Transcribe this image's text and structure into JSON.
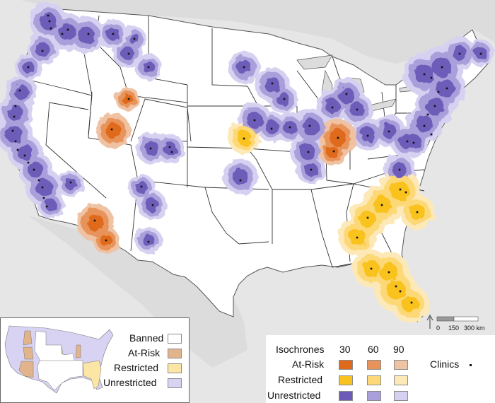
{
  "colors": {
    "banned": "#ffffff",
    "at_risk": "#e2b48c",
    "restricted": "#fce6a6",
    "unrestricted": "#d9d3f3",
    "iso": {
      "at_risk": [
        "#e06a1b",
        "#e8935a",
        "#efc2a3"
      ],
      "restricted": [
        "#f9c21e",
        "#fcd877",
        "#fde9b8"
      ],
      "unrestricted": [
        "#6d5bb8",
        "#a99fda",
        "#d7d1f1"
      ]
    },
    "clinic": "#111111"
  },
  "status_legend": {
    "items": [
      {
        "label": "Banned",
        "swatch": "banned"
      },
      {
        "label": "At-Risk",
        "swatch": "at_risk"
      },
      {
        "label": "Restricted",
        "swatch": "restricted"
      },
      {
        "label": "Unrestricted",
        "swatch": "unrestricted"
      }
    ]
  },
  "isochrone_legend": {
    "title": "Isochrones",
    "columns": [
      "30",
      "60",
      "90"
    ],
    "rows": [
      {
        "label": "At-Risk",
        "key": "at_risk"
      },
      {
        "label": "Restricted",
        "key": "restricted"
      },
      {
        "label": "Unrestricted",
        "key": "unrestricted"
      }
    ],
    "clinics_label": "Clinics"
  },
  "scale_bar": {
    "ticks": [
      "0",
      "150",
      "300 km"
    ]
  },
  "north_arrow": {
    "icon": "north-arrow-icon"
  }
}
